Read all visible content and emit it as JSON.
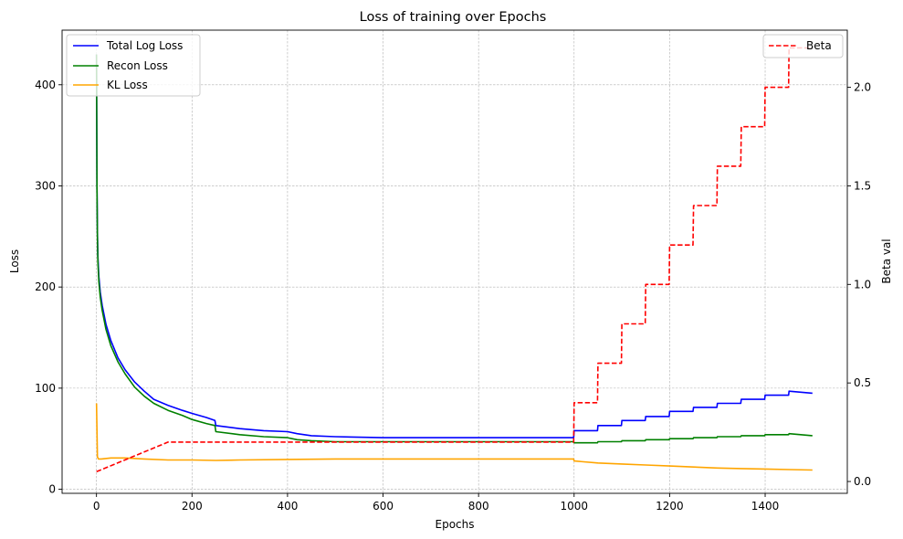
{
  "chart_data": {
    "type": "line",
    "title": "Loss of training over Epochs",
    "xlabel": "Epochs",
    "ylabel": "Loss",
    "y2label": "Beta val",
    "xlim": [
      -72,
      1572
    ],
    "ylim": [
      -4,
      454
    ],
    "y2lim": [
      -0.06,
      2.29
    ],
    "xticks": [
      0,
      200,
      400,
      600,
      800,
      1000,
      1200,
      1400
    ],
    "yticks": [
      0,
      100,
      200,
      300,
      400
    ],
    "y2ticks": [
      0.0,
      0.5,
      1.0,
      1.5,
      2.0
    ],
    "grid": true,
    "legend_left": {
      "placement": "upper left",
      "entries": [
        "Total Log Loss",
        "Recon Loss",
        "KL Loss"
      ]
    },
    "legend_right": {
      "placement": "upper right",
      "entries": [
        "Beta"
      ]
    },
    "series": [
      {
        "name": "Total Log Loss",
        "color": "#0000ff",
        "axis": "left",
        "style": "solid",
        "x": [
          0,
          1,
          2,
          3,
          5,
          8,
          12,
          20,
          30,
          45,
          60,
          80,
          100,
          120,
          150,
          180,
          200,
          230,
          248,
          250,
          300,
          350,
          400,
          420,
          450,
          500,
          600,
          700,
          800,
          900,
          999,
          1000,
          1049,
          1050,
          1099,
          1100,
          1149,
          1150,
          1199,
          1200,
          1249,
          1250,
          1299,
          1300,
          1349,
          1350,
          1399,
          1400,
          1449,
          1450,
          1499
        ],
        "y": [
          430,
          300,
          255,
          230,
          210,
          195,
          182,
          163,
          147,
          130,
          118,
          106,
          97,
          89,
          83,
          78,
          75,
          71,
          68,
          63,
          60,
          58,
          57,
          55,
          53,
          52,
          51,
          51,
          51,
          51,
          51,
          58,
          58,
          63,
          63,
          68,
          68,
          72,
          72,
          77,
          77,
          81,
          81,
          85,
          85,
          89,
          89,
          93,
          93,
          97,
          95
        ]
      },
      {
        "name": "Recon Loss",
        "color": "#008000",
        "axis": "left",
        "style": "solid",
        "x": [
          0,
          1,
          2,
          3,
          5,
          8,
          12,
          20,
          30,
          45,
          60,
          80,
          100,
          120,
          150,
          180,
          200,
          230,
          248,
          250,
          300,
          350,
          400,
          420,
          450,
          500,
          600,
          700,
          800,
          900,
          999,
          1000,
          1049,
          1050,
          1099,
          1100,
          1149,
          1150,
          1199,
          1200,
          1249,
          1250,
          1299,
          1300,
          1349,
          1350,
          1399,
          1400,
          1449,
          1450,
          1499
        ],
        "y": [
          430,
          300,
          250,
          225,
          205,
          190,
          177,
          158,
          142,
          126,
          114,
          101,
          92,
          85,
          78,
          73,
          69,
          65,
          63,
          57,
          54,
          52,
          51,
          49,
          48,
          47,
          47,
          47,
          47,
          47,
          47,
          46,
          46,
          47,
          47,
          48,
          48,
          49,
          49,
          50,
          50,
          51,
          51,
          52,
          52,
          53,
          53,
          54,
          54,
          55,
          53
        ]
      },
      {
        "name": "KL Loss",
        "color": "#ffa500",
        "axis": "left",
        "style": "solid",
        "x": [
          0,
          2,
          4,
          10,
          30,
          60,
          100,
          150,
          200,
          250,
          300,
          400,
          500,
          600,
          700,
          800,
          900,
          999,
          1000,
          1050,
          1100,
          1150,
          1200,
          1250,
          1300,
          1350,
          1400,
          1450,
          1499
        ],
        "y": [
          85,
          32,
          30,
          30,
          31,
          31,
          30,
          29,
          29,
          28.5,
          29,
          29.5,
          30,
          30,
          30,
          30,
          30,
          30,
          28,
          26,
          25,
          24,
          23,
          22,
          21,
          20.5,
          20,
          19.5,
          19
        ]
      },
      {
        "name": "Beta",
        "color": "#ff0000",
        "axis": "right",
        "style": "dashed",
        "x": [
          0,
          150,
          999,
          1000,
          1049,
          1050,
          1099,
          1100,
          1149,
          1150,
          1199,
          1200,
          1249,
          1250,
          1299,
          1300,
          1349,
          1350,
          1399,
          1400,
          1449,
          1450,
          1499
        ],
        "y": [
          0.05,
          0.2,
          0.2,
          0.4,
          0.4,
          0.6,
          0.6,
          0.8,
          0.8,
          1.0,
          1.0,
          1.2,
          1.2,
          1.4,
          1.4,
          1.6,
          1.6,
          1.8,
          1.8,
          2.0,
          2.0,
          2.2,
          2.2
        ]
      }
    ]
  }
}
